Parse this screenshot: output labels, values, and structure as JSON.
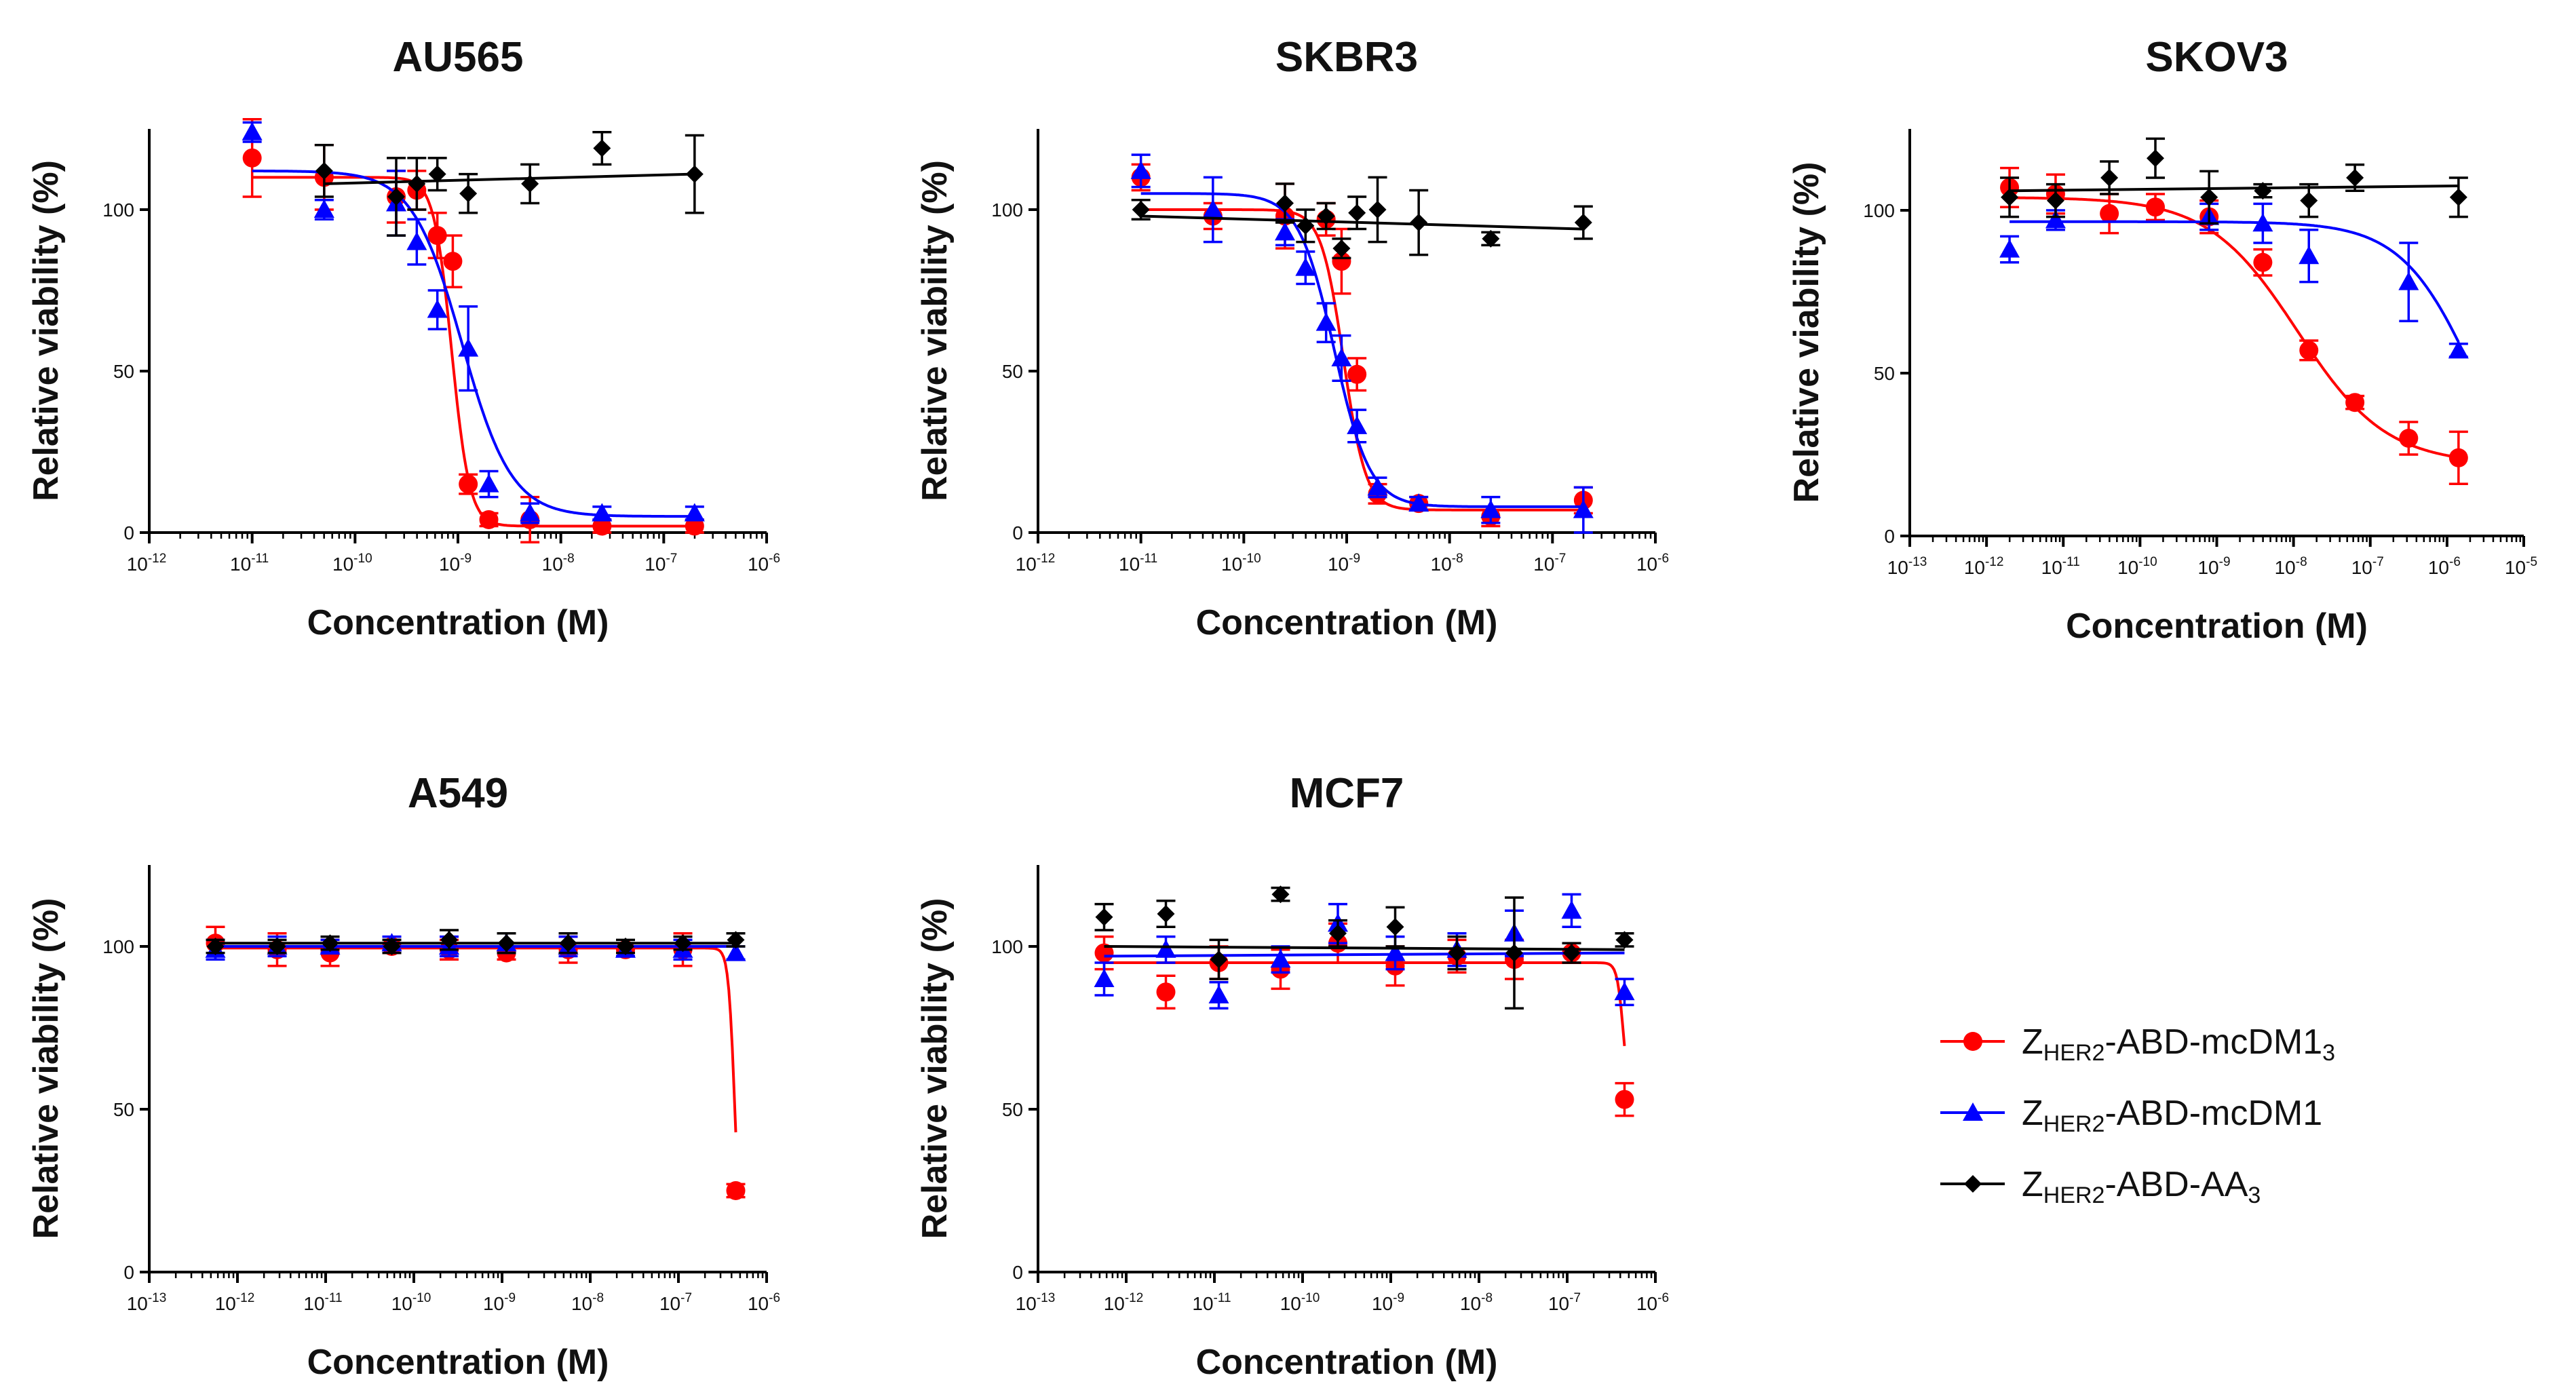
{
  "chart_data": [
    {
      "type": "scatter",
      "title": "AU565",
      "xlabel": "Concentration (M)",
      "ylabel": "Relative viability (%)",
      "xscale": "log",
      "xlim_exp": [
        -12,
        -6
      ],
      "x_tick_labels": [
        "10",
        "10",
        "10",
        "10",
        "10",
        "10",
        "10"
      ],
      "x_tick_exps": [
        "-12",
        "-11",
        "-10",
        "-9",
        "-8",
        "-7",
        "-6"
      ],
      "ylim": [
        0,
        125
      ],
      "y_ticks": [
        "0",
        "50",
        "100"
      ],
      "series": [
        {
          "name": "ZHER2-ABD-mcDM13",
          "color": "#ff0000",
          "marker": "circle",
          "log_x": [
            -11,
            -10.3,
            -9.6,
            -9.4,
            -9.2,
            -9.05,
            -8.9,
            -8.7,
            -8.3,
            -7.6,
            -6.7
          ],
          "y": [
            116,
            110,
            104,
            106,
            92,
            84,
            15,
            4,
            4,
            2,
            2
          ],
          "err": [
            12,
            10,
            8,
            6,
            7,
            8,
            3,
            2,
            7,
            2,
            2
          ],
          "fit": {
            "top": 110,
            "bottom": 2,
            "logEC50": -9.06,
            "hill": 5
          }
        },
        {
          "name": "ZHER2-ABD-mcDM1",
          "color": "#0000ff",
          "marker": "triangle",
          "log_x": [
            -11,
            -10.3,
            -9.6,
            -9.4,
            -9.2,
            -8.9,
            -8.7,
            -8.3,
            -7.6,
            -6.7
          ],
          "y": [
            124,
            100,
            102,
            90,
            69,
            57,
            15,
            6,
            6,
            6
          ],
          "err": [
            3,
            3,
            10,
            7,
            6,
            13,
            4,
            3,
            2,
            2
          ],
          "fit": {
            "top": 112,
            "bottom": 5,
            "logEC50": -8.96,
            "hill": 1.8
          }
        },
        {
          "name": "ZHER2-ABD-AA3",
          "color": "#000000",
          "marker": "diamond",
          "log_x": [
            -10.3,
            -9.6,
            -9.4,
            -9.2,
            -8.9,
            -8.3,
            -7.6,
            -6.7
          ],
          "y": [
            112,
            104,
            108,
            111,
            105,
            108,
            119,
            111
          ],
          "err": [
            8,
            12,
            8,
            5,
            6,
            6,
            5,
            12
          ],
          "fit": {
            "linear": [
              108,
              111
            ]
          }
        }
      ]
    },
    {
      "type": "scatter",
      "title": "SKBR3",
      "xlabel": "Concentration (M)",
      "ylabel": "Relative viability (%)",
      "xscale": "log",
      "xlim_exp": [
        -12,
        -6
      ],
      "x_tick_labels": [
        "10",
        "10",
        "10",
        "10",
        "10",
        "10",
        "10"
      ],
      "x_tick_exps": [
        "-12",
        "-11",
        "-10",
        "-9",
        "-8",
        "-7",
        "-6"
      ],
      "ylim": [
        0,
        125
      ],
      "y_ticks": [
        "0",
        "50",
        "100"
      ],
      "series": [
        {
          "name": "ZHER2-ABD-mcDM13",
          "color": "#ff0000",
          "marker": "circle",
          "log_x": [
            -11,
            -10.3,
            -9.6,
            -9.2,
            -9.05,
            -8.9,
            -8.7,
            -8.3,
            -7.6,
            -6.7
          ],
          "y": [
            110,
            98,
            98,
            97,
            84,
            49,
            12,
            9,
            5,
            10
          ],
          "err": [
            4,
            4,
            10,
            5,
            10,
            5,
            3,
            2,
            3,
            4
          ],
          "fit": {
            "top": 100,
            "bottom": 7,
            "logEC50": -9.03,
            "hill": 4
          }
        },
        {
          "name": "ZHER2-ABD-mcDM1",
          "color": "#0000ff",
          "marker": "triangle",
          "log_x": [
            -11,
            -10.3,
            -9.6,
            -9.4,
            -9.2,
            -9.05,
            -8.9,
            -8.7,
            -8.3,
            -7.6,
            -6.7
          ],
          "y": [
            112,
            100,
            93,
            82,
            65,
            54,
            33,
            14,
            9,
            7,
            7
          ],
          "err": [
            5,
            10,
            4,
            5,
            6,
            7,
            5,
            3,
            2,
            4,
            7
          ],
          "fit": {
            "top": 105,
            "bottom": 8,
            "logEC50": -9.12,
            "hill": 2.5
          }
        },
        {
          "name": "ZHER2-ABD-AA3",
          "color": "#000000",
          "marker": "diamond",
          "log_x": [
            -11,
            -9.6,
            -9.4,
            -9.2,
            -9.05,
            -8.9,
            -8.7,
            -8.3,
            -7.6,
            -6.7
          ],
          "y": [
            100,
            102,
            95,
            98,
            88,
            99,
            100,
            96,
            91,
            96
          ],
          "err": [
            3,
            6,
            5,
            4,
            3,
            5,
            10,
            10,
            2,
            5
          ],
          "fit": {
            "linear": [
              98,
              94
            ]
          }
        }
      ]
    },
    {
      "type": "scatter",
      "title": "SKOV3",
      "xlabel": "Concentration (M)",
      "ylabel": "Relative viability (%)",
      "xscale": "log",
      "xlim_exp": [
        -13,
        -5
      ],
      "x_tick_labels": [
        "10",
        "10",
        "10",
        "10",
        "10",
        "10",
        "10",
        "10",
        "10"
      ],
      "x_tick_exps": [
        "-13",
        "-12",
        "-11",
        "-10",
        "-9",
        "-8",
        "-7",
        "-6",
        "-5"
      ],
      "ylim": [
        0,
        125
      ],
      "y_ticks": [
        "0",
        "50",
        "100"
      ],
      "series": [
        {
          "name": "ZHER2-ABD-mcDM13",
          "color": "#ff0000",
          "marker": "circle",
          "log_x": [
            -11.7,
            -11.1,
            -10.4,
            -9.8,
            -9.1,
            -8.4,
            -7.8,
            -7.2,
            -6.5,
            -5.85
          ],
          "y": [
            107,
            105,
            99,
            101,
            98,
            84,
            57,
            41,
            30,
            24
          ],
          "err": [
            6,
            6,
            6,
            4,
            5,
            4,
            3,
            2,
            5,
            8
          ],
          "fit": {
            "top": 104,
            "bottom": 22,
            "logEC50": -7.95,
            "hill": 0.75
          }
        },
        {
          "name": "ZHER2-ABD-mcDM1",
          "color": "#0000ff",
          "marker": "triangle",
          "log_x": [
            -11.7,
            -11.1,
            -9.1,
            -8.4,
            -7.8,
            -6.5,
            -5.85
          ],
          "y": [
            88,
            97,
            98,
            96,
            86,
            78,
            57
          ],
          "err": [
            4,
            3,
            4,
            6,
            8,
            12,
            2
          ],
          "fit": {
            "top": 96.5,
            "bottom": 0,
            "logEC50": -5.62,
            "hill": 0.9
          }
        },
        {
          "name": "ZHER2-ABD-AA3",
          "color": "#000000",
          "marker": "diamond",
          "log_x": [
            -11.7,
            -11.1,
            -10.4,
            -9.8,
            -9.1,
            -8.4,
            -7.8,
            -7.2,
            -5.85
          ],
          "y": [
            104,
            103,
            110,
            116,
            104,
            106,
            103,
            110,
            104
          ],
          "err": [
            6,
            5,
            5,
            6,
            8,
            2,
            5,
            4,
            6
          ],
          "fit": {
            "linear": [
              106,
              107.5
            ]
          }
        }
      ]
    },
    {
      "type": "scatter",
      "title": "A549",
      "xlabel": "Concentration (M)",
      "ylabel": "Relative viability (%)",
      "xscale": "log",
      "xlim_exp": [
        -13,
        -6
      ],
      "x_tick_labels": [
        "10",
        "10",
        "10",
        "10",
        "10",
        "10",
        "10",
        "10"
      ],
      "x_tick_exps": [
        "-13",
        "-12",
        "-11",
        "-10",
        "-9",
        "-8",
        "-7",
        "-6"
      ],
      "ylim": [
        0,
        125
      ],
      "y_ticks": [
        "0",
        "50",
        "100"
      ],
      "series": [
        {
          "name": "ZHER2-ABD-mcDM13",
          "color": "#ff0000",
          "marker": "circle",
          "log_x": [
            -12.25,
            -11.55,
            -10.95,
            -10.25,
            -9.6,
            -8.95,
            -8.25,
            -7.6,
            -6.95,
            -6.35
          ],
          "y": [
            101,
            99,
            98,
            100,
            99,
            98,
            99,
            99,
            99,
            25
          ],
          "err": [
            5,
            5,
            4,
            2,
            3,
            2,
            4,
            2,
            5,
            2
          ],
          "fit": {
            "top": 99.5,
            "bottom": 0,
            "logEC50": -6.36,
            "hill": 12
          }
        },
        {
          "name": "ZHER2-ABD-mcDM1",
          "color": "#0000ff",
          "marker": "triangle",
          "log_x": [
            -12.25,
            -11.55,
            -10.95,
            -10.25,
            -9.6,
            -8.95,
            -8.25,
            -7.6,
            -6.95,
            -6.35
          ],
          "y": [
            99,
            100,
            100,
            101,
            100,
            101,
            100,
            99,
            99,
            98
          ],
          "err": [
            3,
            3,
            2,
            2,
            3,
            3,
            3,
            2,
            3,
            2
          ],
          "fit": {
            "linear": [
              100,
              100
            ]
          }
        },
        {
          "name": "ZHER2-ABD-AA3",
          "color": "#000000",
          "marker": "diamond",
          "log_x": [
            -12.25,
            -11.55,
            -10.95,
            -10.25,
            -9.6,
            -8.95,
            -8.25,
            -7.6,
            -6.95,
            -6.35
          ],
          "y": [
            100,
            100,
            101,
            100,
            102,
            101,
            101,
            100,
            101,
            102
          ],
          "err": [
            2,
            2,
            2,
            2,
            3,
            3,
            3,
            2,
            2,
            2
          ],
          "fit": {
            "linear": [
              101,
              101
            ]
          }
        }
      ]
    },
    {
      "type": "scatter",
      "title": "MCF7",
      "xlabel": "Concentration (M)",
      "ylabel": "Relative viability (%)",
      "xscale": "log",
      "xlim_exp": [
        -13,
        -6
      ],
      "x_tick_labels": [
        "10",
        "10",
        "10",
        "10",
        "10",
        "10",
        "10",
        "10"
      ],
      "x_tick_exps": [
        "-13",
        "-12",
        "-11",
        "-10",
        "-9",
        "-8",
        "-7",
        "-6"
      ],
      "ylim": [
        0,
        125
      ],
      "y_ticks": [
        "0",
        "50",
        "100"
      ],
      "series": [
        {
          "name": "ZHER2-ABD-mcDM13",
          "color": "#ff0000",
          "marker": "circle",
          "log_x": [
            -12.25,
            -11.55,
            -10.95,
            -10.25,
            -9.6,
            -8.95,
            -8.25,
            -7.6,
            -6.95,
            -6.35
          ],
          "y": [
            98,
            86,
            95,
            93,
            101,
            94,
            97,
            96,
            98,
            53
          ],
          "err": [
            5,
            5,
            5,
            6,
            6,
            6,
            5,
            6,
            3,
            5
          ],
          "fit": {
            "top": 95,
            "bottom": 50,
            "logEC50": -6.36,
            "hill": 12
          }
        },
        {
          "name": "ZHER2-ABD-mcDM1",
          "color": "#0000ff",
          "marker": "triangle",
          "log_x": [
            -12.25,
            -11.55,
            -10.95,
            -10.25,
            -9.6,
            -8.95,
            -8.25,
            -7.6,
            -6.95,
            -6.35
          ],
          "y": [
            90,
            99,
            85,
            96,
            107,
            98,
            99,
            104,
            111,
            86
          ],
          "err": [
            5,
            4,
            4,
            4,
            6,
            5,
            5,
            7,
            5,
            4
          ],
          "fit": {
            "linear": [
              97,
              98
            ]
          }
        },
        {
          "name": "ZHER2-ABD-AA3",
          "color": "#000000",
          "marker": "diamond",
          "log_x": [
            -12.25,
            -11.55,
            -10.95,
            -10.25,
            -9.6,
            -8.95,
            -8.25,
            -7.6,
            -6.95,
            -6.35
          ],
          "y": [
            109,
            110,
            96,
            116,
            104,
            106,
            98,
            98,
            98,
            102
          ],
          "err": [
            4,
            4,
            6,
            2,
            4,
            6,
            5,
            17,
            3,
            2
          ],
          "fit": {
            "linear": [
              100,
              99
            ]
          }
        }
      ]
    }
  ],
  "legend": {
    "entries": [
      {
        "text_main": "Z",
        "text_sub": "HER2",
        "text_rest": "-ABD-mcDM1",
        "text_sub2": "3",
        "color": "#ff0000",
        "marker": "circle"
      },
      {
        "text_main": "Z",
        "text_sub": "HER2",
        "text_rest": "-ABD-mcDM1",
        "text_sub2": "",
        "color": "#0000ff",
        "marker": "triangle"
      },
      {
        "text_main": "Z",
        "text_sub": "HER2",
        "text_rest": "-ABD-AA",
        "text_sub2": "3",
        "color": "#000000",
        "marker": "diamond"
      }
    ]
  }
}
